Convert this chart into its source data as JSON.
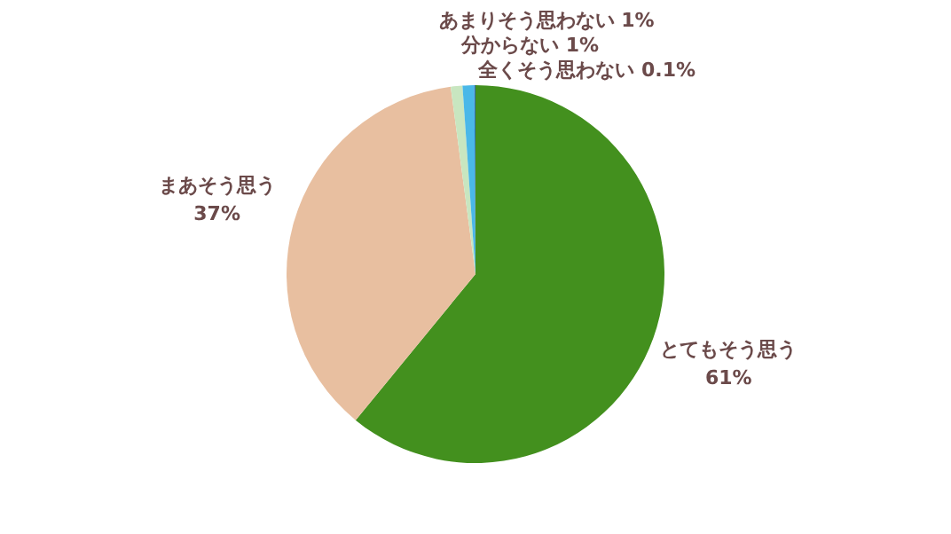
{
  "chart_data": {
    "type": "pie",
    "categories": [
      "とてもそう思う",
      "まあそう思う",
      "あまりそう思わない",
      "分からない",
      "全くそう思わない"
    ],
    "values": [
      61,
      37,
      1,
      1,
      0.1
    ],
    "colors": [
      "#43901e",
      "#e8bfa0",
      "#c8e6c0",
      "#4ab8e8",
      "#2f6fb0"
    ],
    "value_labels": [
      "61%",
      "37%",
      "1%",
      "1%",
      "0.1%"
    ],
    "legend": false
  }
}
